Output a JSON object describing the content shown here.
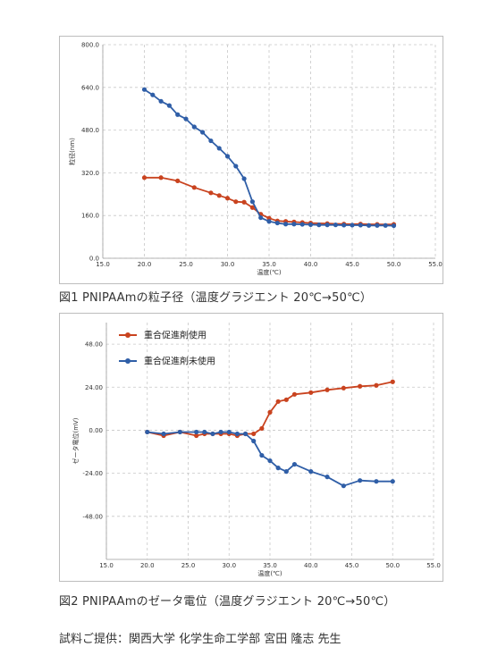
{
  "chart_data": [
    {
      "type": "line",
      "title": "",
      "xlabel": "温度(℃)",
      "ylabel": "粒径(nm)",
      "xlim": [
        15.0,
        55.0
      ],
      "ylim": [
        0.0,
        800.0
      ],
      "x_ticks": [
        15.0,
        20.0,
        25.0,
        30.0,
        35.0,
        40.0,
        45.0,
        50.0,
        55.0
      ],
      "y_ticks": [
        0.0,
        160.0,
        320.0,
        480.0,
        640.0,
        800.0
      ],
      "x_tick_labels": [
        "15.0",
        "20.0",
        "25.0",
        "30.0",
        "35.0",
        "40.0",
        "45.0",
        "50.0",
        "55.0"
      ],
      "y_tick_labels": [
        "0.0",
        "160.0",
        "320.0",
        "480.0",
        "640.0",
        "800.0"
      ],
      "grid": true,
      "legend": "none",
      "series": [
        {
          "color": "#c9431f",
          "x": [
            20,
            22,
            24,
            26,
            28,
            29,
            30,
            31,
            32,
            33,
            34,
            35,
            36,
            37,
            38,
            39,
            40,
            42,
            44,
            46,
            48,
            50
          ],
          "y": [
            302,
            302,
            290,
            265,
            245,
            235,
            225,
            212,
            210,
            190,
            165,
            150,
            140,
            138,
            136,
            134,
            132,
            130,
            128,
            128,
            127,
            127
          ]
        },
        {
          "color": "#2f5ea7",
          "x": [
            20,
            21,
            22,
            23,
            24,
            25,
            26,
            27,
            28,
            29,
            30,
            31,
            32,
            33,
            34,
            35,
            36,
            37,
            38,
            39,
            40,
            41,
            42,
            43,
            44,
            45,
            46,
            47,
            48,
            49,
            50
          ],
          "y": [
            632,
            612,
            588,
            572,
            538,
            522,
            492,
            472,
            440,
            412,
            382,
            345,
            298,
            212,
            152,
            138,
            132,
            128,
            128,
            127,
            126,
            125,
            125,
            125,
            124,
            124,
            124,
            123,
            123,
            123,
            122
          ]
        }
      ]
    },
    {
      "type": "line",
      "title": "",
      "xlabel": "温度(℃)",
      "ylabel": "ゼータ電位(mV)",
      "xlim": [
        15.0,
        55.0
      ],
      "ylim": [
        -72.0,
        60.0
      ],
      "x_ticks": [
        15.0,
        20.0,
        25.0,
        30.0,
        35.0,
        40.0,
        45.0,
        50.0,
        55.0
      ],
      "y_ticks": [
        -48.0,
        -24.0,
        0.0,
        24.0,
        48.0
      ],
      "x_tick_labels": [
        "15.0",
        "20.0",
        "25.0",
        "30.0",
        "35.0",
        "40.0",
        "45.0",
        "50.0",
        "55.0"
      ],
      "y_tick_labels": [
        "-48.00",
        "-24.00",
        "0.00",
        "24.00",
        "48.00"
      ],
      "grid": true,
      "legend": "top-left",
      "series": [
        {
          "name": "重合促進剤使用",
          "color": "#c9431f",
          "x": [
            20,
            22,
            24,
            26,
            27,
            28,
            29,
            30,
            31,
            32,
            33,
            34,
            35,
            36,
            37,
            38,
            40,
            42,
            44,
            46,
            48,
            50
          ],
          "y": [
            -1,
            -3,
            -1,
            -3,
            -2,
            -2,
            -2,
            -2,
            -3,
            -2,
            -2,
            1,
            10,
            16,
            17,
            20,
            21,
            22.5,
            23.5,
            24.5,
            25,
            27
          ]
        },
        {
          "name": "重合促進剤未使用",
          "color": "#2f5ea7",
          "x": [
            20,
            22,
            24,
            26,
            27,
            28,
            29,
            30,
            31,
            32,
            33,
            34,
            35,
            36,
            37,
            38,
            40,
            42,
            44,
            46,
            48,
            50
          ],
          "y": [
            -1,
            -2,
            -1,
            -1,
            -1,
            -2,
            -1,
            -1,
            -2,
            -2,
            -6,
            -14,
            -17,
            -21,
            -23,
            -19,
            -23,
            -26,
            -31,
            -28,
            -28.5,
            -28.5
          ]
        }
      ]
    }
  ],
  "captions": {
    "fig1": "図1  PNIPAAmの粒子径（温度グラジエント 20℃→50℃）",
    "fig2": "図2  PNIPAAmのゼータ電位（温度グラジエント 20℃→50℃）",
    "credit": "試料ご提供：関西大学 化学生命工学部 宮田 隆志 先生"
  }
}
